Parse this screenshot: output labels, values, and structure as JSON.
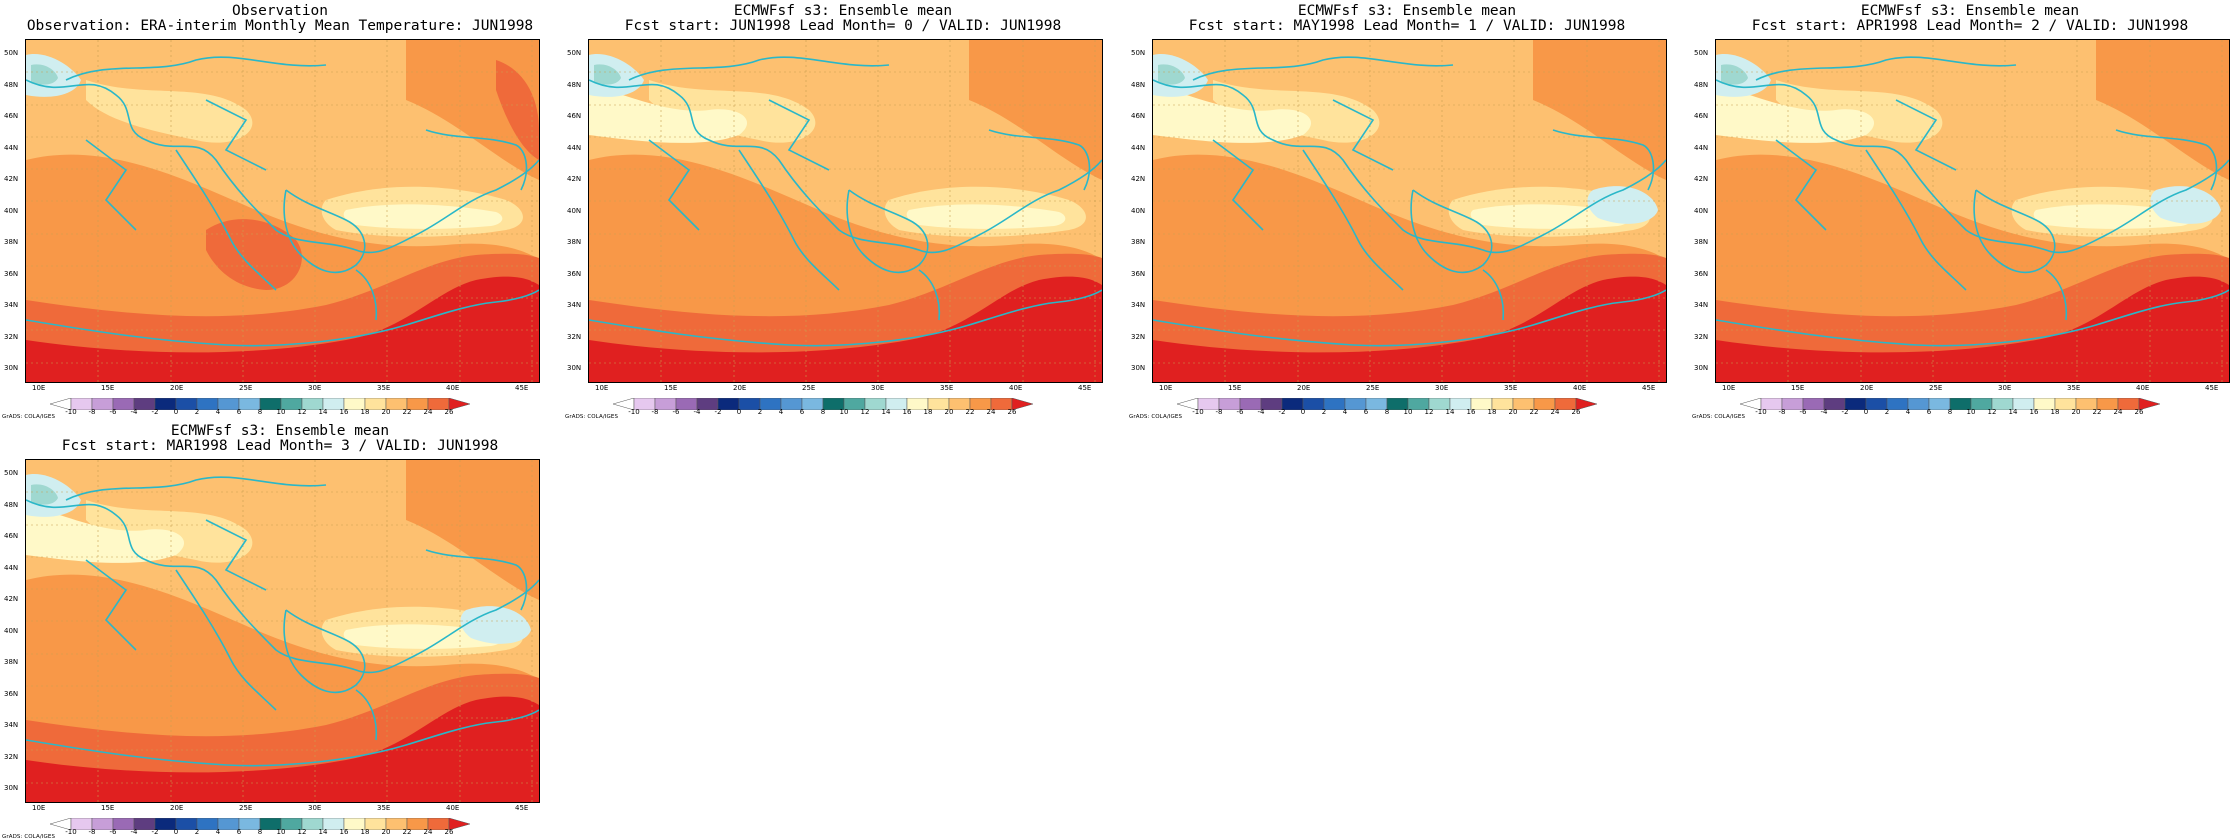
{
  "panels": [
    {
      "title1": "Observation",
      "title2": "Observation: ERA-interim Monthly Mean Temperature: JUN1998",
      "warm": 1.0,
      "cool_north": 0.5
    },
    {
      "title1": "ECMWFsf s3: Ensemble mean",
      "title2": "Fcst start: JUN1998  Lead Month= 0 / VALID: JUN1998",
      "warm": 0.7,
      "cool_north": 0.6
    },
    {
      "title1": "ECMWFsf s3: Ensemble mean",
      "title2": "Fcst start: MAY1998  Lead Month= 1 / VALID: JUN1998",
      "warm": 0.6,
      "cool_north": 0.8
    },
    {
      "title1": "ECMWFsf s3: Ensemble mean",
      "title2": "Fcst start: APR1998  Lead Month= 2 / VALID: JUN1998",
      "warm": 0.6,
      "cool_north": 0.8
    },
    {
      "title1": "ECMWFsf s3: Ensemble mean",
      "title2": "Fcst start: MAR1998  Lead Month= 3 / VALID: JUN1998",
      "warm": 0.55,
      "cool_north": 0.9
    }
  ],
  "lat_labels": [
    "50N",
    "48N",
    "46N",
    "44N",
    "42N",
    "40N",
    "38N",
    "36N",
    "34N",
    "32N",
    "30N"
  ],
  "lon_labels": [
    "10E",
    "15E",
    "20E",
    "25E",
    "30E",
    "35E",
    "40E",
    "45E"
  ],
  "colorbar": {
    "levels": [
      "-10",
      "-8",
      "-6",
      "-4",
      "-2",
      "0",
      "2",
      "4",
      "6",
      "8",
      "10",
      "12",
      "14",
      "16",
      "18",
      "20",
      "22",
      "24",
      "26"
    ],
    "colors": [
      "#ffffff",
      "#e6c8ef",
      "#c79ed8",
      "#9a6ab5",
      "#5e3d80",
      "#0b2a7c",
      "#1b4fa6",
      "#2e73c2",
      "#5597d3",
      "#7ab8e0",
      "#0e6e6a",
      "#4fa8a0",
      "#9fd8d0",
      "#d0eef0",
      "#fff9c8",
      "#ffe39c",
      "#fdc070",
      "#f89848",
      "#ef6a3a",
      "#e02020"
    ]
  },
  "credit": "GrADS: COLA/IGES"
}
